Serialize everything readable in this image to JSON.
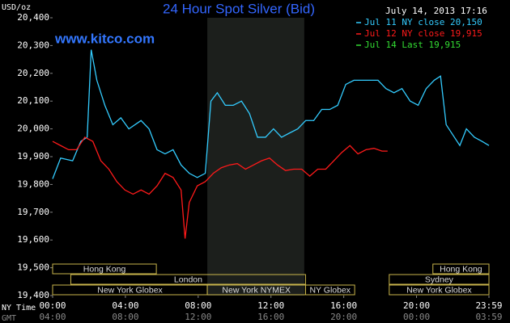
{
  "chart_data": {
    "type": "line",
    "title": "24 Hour Spot Silver (Bid)",
    "y_label": "USD/oz",
    "timestamp": "July 14, 2013 17:16",
    "watermark": "www.kitco.com",
    "x_row_labels": [
      "NY Time",
      "GMT"
    ],
    "xlim": [
      0,
      23.98
    ],
    "ylim": [
      19400,
      20400
    ],
    "yticks": [
      {
        "value": 19400,
        "label": "19,400"
      },
      {
        "value": 19500,
        "label": "19,500"
      },
      {
        "value": 19600,
        "label": "19,600"
      },
      {
        "value": 19700,
        "label": "19,700"
      },
      {
        "value": 19800,
        "label": "19,800"
      },
      {
        "value": 19900,
        "label": "19,900"
      },
      {
        "value": 20000,
        "label": "20,000"
      },
      {
        "value": 20100,
        "label": "20,100"
      },
      {
        "value": 20200,
        "label": "20,200"
      },
      {
        "value": 20300,
        "label": "20,300"
      },
      {
        "value": 20400,
        "label": "20,400"
      }
    ],
    "xticks": [
      {
        "value": 0,
        "label": "00:00"
      },
      {
        "value": 4,
        "label": "04:00"
      },
      {
        "value": 8,
        "label": "08:00"
      },
      {
        "value": 12,
        "label": "12:00"
      },
      {
        "value": 16,
        "label": "16:00"
      },
      {
        "value": 20,
        "label": "20:00"
      },
      {
        "value": 23.98,
        "label": "23:59"
      }
    ],
    "gmt_labels": [
      "04:00",
      "08:00",
      "12:00",
      "16:00",
      "20:00",
      "00:00",
      "03:59"
    ],
    "highlight_x": [
      8.5,
      13.83
    ],
    "sessions": [
      {
        "name": "Hong Kong",
        "row": 0,
        "start": 0,
        "end": 5.7
      },
      {
        "name": "Hong Kong",
        "row": 0,
        "start": 20.9,
        "end": 23.98
      },
      {
        "name": "London",
        "row": 1,
        "start": 1.0,
        "end": 13.9
      },
      {
        "name": "Sydney",
        "row": 1,
        "start": 18.5,
        "end": 23.98
      },
      {
        "name": "New York Globex",
        "row": 2,
        "start": 0,
        "end": 8.5
      },
      {
        "name": "New York NYMEX",
        "row": 2,
        "start": 8.5,
        "end": 13.9
      },
      {
        "name": "NY Globex",
        "row": 2,
        "start": 13.9,
        "end": 16.6
      },
      {
        "name": "New York Globex",
        "row": 2,
        "start": 18.5,
        "end": 23.98
      }
    ],
    "series": [
      {
        "name": "Jul 11 NY close 20,150",
        "color": "#33ccff",
        "x": [
          0,
          0.44,
          1.1,
          1.55,
          1.9,
          2.12,
          2.43,
          2.87,
          3.31,
          3.75,
          4.19,
          4.86,
          5.3,
          5.74,
          6.18,
          6.62,
          7.06,
          7.51,
          7.95,
          8.39,
          8.7,
          9.05,
          9.49,
          9.93,
          10.38,
          10.82,
          11.26,
          11.7,
          12.14,
          12.58,
          13.02,
          13.47,
          13.91,
          14.35,
          14.79,
          15.23,
          15.67,
          16.11,
          16.56,
          17.0,
          17.44,
          17.88,
          18.32,
          18.76,
          19.2,
          19.65,
          20.09,
          20.53,
          20.97,
          21.32,
          21.63,
          22.08,
          22.38,
          22.74,
          23.18,
          23.6,
          23.98
        ],
        "values": [
          19820,
          19895,
          19885,
          19955,
          19970,
          20285,
          20175,
          20085,
          20015,
          20040,
          20000,
          20030,
          20000,
          19925,
          19910,
          19925,
          19870,
          19840,
          19825,
          19840,
          20100,
          20130,
          20085,
          20085,
          20100,
          20055,
          19970,
          19970,
          20000,
          19970,
          19985,
          20000,
          20030,
          20030,
          20070,
          20070,
          20085,
          20160,
          20175,
          20175,
          20175,
          20175,
          20145,
          20130,
          20145,
          20100,
          20085,
          20145,
          20175,
          20190,
          20015,
          19970,
          19940,
          20000,
          19970,
          19955,
          19940
        ]
      },
      {
        "name": "Jul 12 NY close 19,915",
        "color": "#ff1a1a",
        "x": [
          0,
          0.44,
          0.88,
          1.32,
          1.77,
          2.21,
          2.65,
          3.09,
          3.53,
          3.97,
          4.42,
          4.86,
          5.3,
          5.74,
          6.18,
          6.62,
          7.06,
          7.28,
          7.51,
          7.95,
          8.39,
          8.83,
          9.27,
          9.71,
          10.15,
          10.6,
          11.04,
          11.48,
          11.92,
          12.36,
          12.8,
          13.25,
          13.69,
          14.13,
          14.57,
          15.01,
          15.45,
          15.89,
          16.34,
          16.78,
          17.22,
          17.66,
          18.1,
          18.41
        ],
        "values": [
          19955,
          19940,
          19925,
          19925,
          19970,
          19955,
          19885,
          19855,
          19810,
          19780,
          19765,
          19780,
          19765,
          19795,
          19840,
          19825,
          19780,
          19605,
          19735,
          19795,
          19810,
          19840,
          19860,
          19870,
          19875,
          19855,
          19870,
          19885,
          19895,
          19870,
          19850,
          19855,
          19855,
          19830,
          19855,
          19855,
          19885,
          19915,
          19940,
          19910,
          19925,
          19930,
          19920,
          19920
        ]
      },
      {
        "name": "Jul 14 Last 19,915",
        "color": "#33dd33",
        "x": [],
        "values": []
      }
    ]
  }
}
